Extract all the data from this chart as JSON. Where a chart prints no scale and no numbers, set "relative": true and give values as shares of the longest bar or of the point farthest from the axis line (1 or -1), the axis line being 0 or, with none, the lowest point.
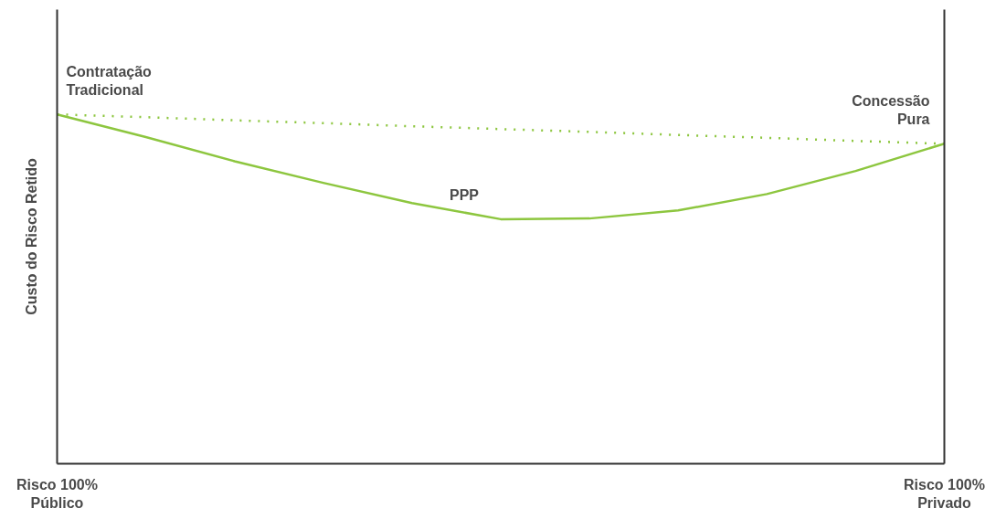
{
  "chart_data": {
    "type": "line",
    "relative": true,
    "ylabel": "Custo do Risco Retido",
    "categories": [
      "Risco 100%\nPúblico",
      null,
      null,
      null,
      null,
      null,
      null,
      null,
      null,
      null,
      "Risco 100%\nPrivado"
    ],
    "marker": "none",
    "grid": false,
    "series": [
      {
        "color": "#8dc63f",
        "line_style": "solid",
        "values": [
          1.0,
          0.935,
          0.866,
          0.804,
          0.746,
          0.7,
          0.702,
          0.725,
          0.772,
          0.838,
          0.916
        ]
      },
      {
        "color": "#8dc63f",
        "line_style": "dotted",
        "values": [
          1.0,
          0.992,
          0.983,
          0.975,
          0.966,
          0.958,
          0.95,
          0.941,
          0.933,
          0.924,
          0.916
        ]
      }
    ],
    "annotations": [
      {
        "text": "Contratação\nTradicional",
        "x": "Risco 100%\nPúblico",
        "y": 1.0
      },
      "PPP",
      {
        "text": "Concessão\nPura",
        "x": "Risco 100%\nPrivado",
        "y": 0.916
      }
    ]
  }
}
